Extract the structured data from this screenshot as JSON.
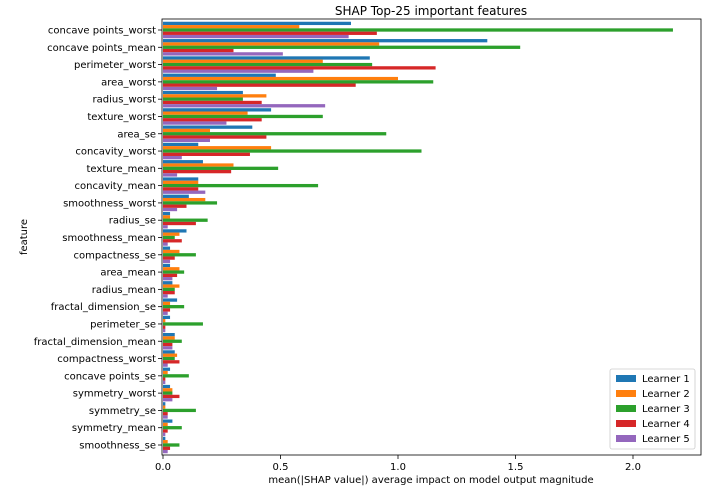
{
  "chart_data": {
    "type": "bar",
    "orientation": "horizontal",
    "title": "SHAP Top-25 important features",
    "xlabel": "mean(|SHAP value|) average impact on model output magnitude",
    "ylabel": "feature",
    "xlim": [
      0,
      2.28
    ],
    "xticks": [
      0.0,
      0.5,
      1.0,
      1.5,
      2.0
    ],
    "xtick_labels": [
      "0.0",
      "0.5",
      "1.0",
      "1.5",
      "2.0"
    ],
    "grid": false,
    "legend_position": "bottom-right",
    "categories": [
      "concave points_worst",
      "concave points_mean",
      "perimeter_worst",
      "area_worst",
      "radius_worst",
      "texture_worst",
      "area_se",
      "concavity_worst",
      "texture_mean",
      "concavity_mean",
      "smoothness_worst",
      "radius_se",
      "smoothness_mean",
      "compactness_se",
      "area_mean",
      "radius_mean",
      "fractal_dimension_se",
      "perimeter_se",
      "fractal_dimension_mean",
      "compactness_worst",
      "concave points_se",
      "symmetry_worst",
      "symmetry_se",
      "symmetry_mean",
      "smoothness_se"
    ],
    "series": [
      {
        "name": "Learner 1",
        "color": "#1f77b4",
        "values": [
          0.8,
          1.38,
          0.88,
          0.48,
          0.34,
          0.46,
          0.38,
          0.15,
          0.17,
          0.15,
          0.11,
          0.03,
          0.1,
          0.03,
          0.03,
          0.04,
          0.06,
          0.03,
          0.05,
          0.05,
          0.03,
          0.03,
          0.01,
          0.04,
          0.01
        ]
      },
      {
        "name": "Learner 2",
        "color": "#ff7f0e",
        "values": [
          0.58,
          0.92,
          0.68,
          1.0,
          0.44,
          0.36,
          0.2,
          0.46,
          0.3,
          0.15,
          0.18,
          0.03,
          0.07,
          0.07,
          0.07,
          0.07,
          0.03,
          0.01,
          0.05,
          0.06,
          0.02,
          0.04,
          0.01,
          0.02,
          0.02
        ]
      },
      {
        "name": "Learner 3",
        "color": "#2ca02c",
        "values": [
          2.17,
          1.52,
          0.89,
          1.15,
          0.34,
          0.68,
          0.95,
          1.1,
          0.49,
          0.66,
          0.23,
          0.19,
          0.05,
          0.14,
          0.09,
          0.05,
          0.09,
          0.17,
          0.08,
          0.05,
          0.11,
          0.04,
          0.14,
          0.08,
          0.07
        ]
      },
      {
        "name": "Learner 4",
        "color": "#d62728",
        "values": [
          0.91,
          0.3,
          1.16,
          0.82,
          0.42,
          0.42,
          0.44,
          0.37,
          0.29,
          0.15,
          0.1,
          0.14,
          0.08,
          0.05,
          0.06,
          0.05,
          0.03,
          0.01,
          0.04,
          0.07,
          0.01,
          0.07,
          0.02,
          0.02,
          0.03
        ]
      },
      {
        "name": "Learner 5",
        "color": "#9467bd",
        "values": [
          0.79,
          0.51,
          0.64,
          0.23,
          0.69,
          0.27,
          0.2,
          0.08,
          0.06,
          0.18,
          0.06,
          0.02,
          0.02,
          0.03,
          0.04,
          0.02,
          0.02,
          0.01,
          0.04,
          0.02,
          0.01,
          0.04,
          0.02,
          0.01,
          0.02
        ]
      }
    ]
  }
}
